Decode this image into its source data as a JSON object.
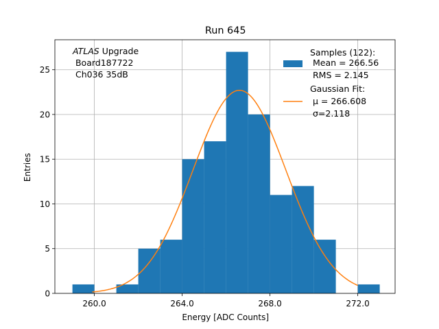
{
  "chart_data": {
    "type": "bar",
    "title": "Run 645",
    "xlabel": "Energy [ADC Counts]",
    "ylabel": "Entries",
    "xlim": [
      258.2,
      273.7
    ],
    "ylim": [
      0,
      28.35
    ],
    "grid": true,
    "x_ticks": [
      260.0,
      264.0,
      268.0,
      272.0
    ],
    "x_tick_labels": [
      "260.0",
      "264.0",
      "268.0",
      "272.0"
    ],
    "y_ticks": [
      0,
      5,
      10,
      15,
      20,
      25
    ],
    "y_tick_labels": [
      "0",
      "5",
      "10",
      "15",
      "20",
      "25"
    ],
    "annotation_lines": [
      "ATLAS Upgrade",
      "Board187722",
      "Ch036 35dB"
    ],
    "histogram": {
      "name": "Samples (122):",
      "color": "#1f77b4",
      "bins": [
        {
          "left": 259,
          "right": 260,
          "count": 1
        },
        {
          "left": 260,
          "right": 261,
          "count": 0
        },
        {
          "left": 261,
          "right": 262,
          "count": 1
        },
        {
          "left": 262,
          "right": 263,
          "count": 5
        },
        {
          "left": 263,
          "right": 264,
          "count": 6
        },
        {
          "left": 264,
          "right": 265,
          "count": 15
        },
        {
          "left": 265,
          "right": 266,
          "count": 17
        },
        {
          "left": 266,
          "right": 267,
          "count": 27
        },
        {
          "left": 267,
          "right": 268,
          "count": 20
        },
        {
          "left": 268,
          "right": 269,
          "count": 11
        },
        {
          "left": 269,
          "right": 270,
          "count": 12
        },
        {
          "left": 270,
          "right": 271,
          "count": 6
        },
        {
          "left": 271,
          "right": 272,
          "count": 0
        },
        {
          "left": 272,
          "right": 273,
          "count": 1
        }
      ]
    },
    "fit": {
      "name": "Gaussian Fit:",
      "color": "#ff7f0e",
      "mu": 266.608,
      "sigma": 2.118,
      "amplitude": 22.7,
      "x_range": [
        259.9,
        272.0
      ]
    },
    "legend": {
      "position": "top-right",
      "samples_lines": [
        "Samples (122):",
        " Mean = 266.56",
        " RMS = 2.145"
      ],
      "fit_lines": [
        "Gaussian Fit:",
        " μ = 266.608",
        " σ=2.118"
      ]
    }
  }
}
